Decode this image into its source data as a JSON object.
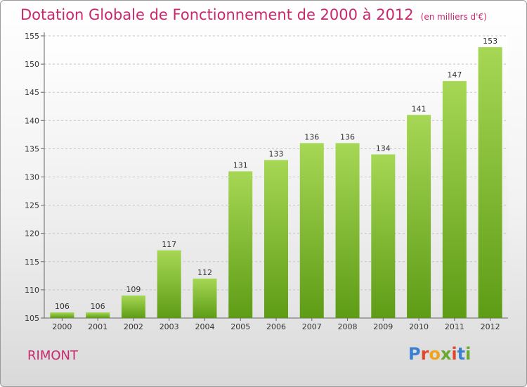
{
  "header": {
    "title": "Dotation Globale de Fonctionnement de 2000 à 2012",
    "unit": "(en milliers d'€)"
  },
  "footer": {
    "commune": "RIMONT",
    "logo_letters": [
      {
        "ch": "P",
        "color": "#3a7fd0"
      },
      {
        "ch": "r",
        "color": "#e0462b"
      },
      {
        "ch": "o",
        "color": "#f0a41e"
      },
      {
        "ch": "x",
        "color": "#6aa82e"
      },
      {
        "ch": "i",
        "color": "#e0462b"
      },
      {
        "ch": "t",
        "color": "#3a7fd0"
      },
      {
        "ch": "i",
        "color": "#6aa82e"
      }
    ]
  },
  "chart_data": {
    "type": "bar",
    "title": "Dotation Globale de Fonctionnement de 2000 à 2012",
    "subtitle": "(en milliers d'€)",
    "categories": [
      "2000",
      "2001",
      "2002",
      "2003",
      "2004",
      "2005",
      "2006",
      "2007",
      "2008",
      "2009",
      "2010",
      "2011",
      "2012"
    ],
    "values": [
      106,
      106,
      109,
      117,
      112,
      131,
      133,
      136,
      136,
      134,
      141,
      147,
      153
    ],
    "ylim": [
      105,
      155
    ],
    "yticks": [
      105,
      110,
      115,
      120,
      125,
      130,
      135,
      140,
      145,
      150,
      155
    ],
    "grid": true,
    "colors": {
      "bar_light": "#a6d755",
      "bar_dark": "#5e9c16",
      "accent": "#c8286e"
    }
  }
}
